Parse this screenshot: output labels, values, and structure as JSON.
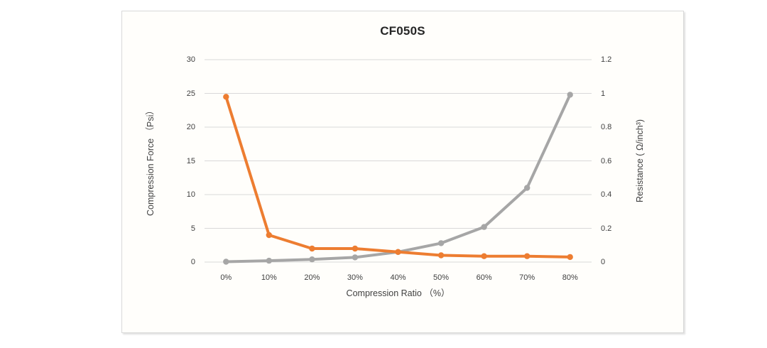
{
  "chart": {
    "title": "CF050S"
  },
  "chart_data": {
    "type": "line",
    "title": "CF050S",
    "categories": [
      "0%",
      "10%",
      "20%",
      "30%",
      "40%",
      "50%",
      "60%",
      "70%",
      "80%"
    ],
    "x_axis": {
      "label": "Compression Ratio （%）"
    },
    "left_axis": {
      "label": "Compression Force （Psi）",
      "range": [
        0,
        30
      ],
      "ticks": [
        0,
        5,
        10,
        15,
        20,
        25,
        30
      ],
      "tick_labels": [
        "0",
        "5",
        "10",
        "15",
        "20",
        "25",
        "30"
      ]
    },
    "right_axis": {
      "label": "Resistance ( Ω/inch³)",
      "range": [
        0,
        1.2
      ],
      "ticks": [
        0,
        0.2,
        0.4,
        0.6,
        0.8,
        1,
        1.2
      ],
      "tick_labels": [
        "0",
        "0.2",
        "0.4",
        "0.6",
        "0.8",
        "1",
        "1.2"
      ]
    },
    "grid": true,
    "legend": "none",
    "series": [
      {
        "name": "Compression Force",
        "axis": "left",
        "color": "#a6a6a6",
        "marker": "circle",
        "values": [
          0.05,
          0.2,
          0.4,
          0.7,
          1.5,
          2.8,
          5.2,
          11,
          24.8
        ]
      },
      {
        "name": "Resistance",
        "axis": "right",
        "color": "#ed7d31",
        "marker": "circle",
        "values": [
          0.98,
          0.16,
          0.08,
          0.08,
          0.06,
          0.04,
          0.035,
          0.035,
          0.03
        ]
      }
    ]
  },
  "colors": {
    "gridline": "#d9d9d9",
    "axis_text": "#404040",
    "title_text": "#262626",
    "box_border": "#d9d9d9"
  }
}
